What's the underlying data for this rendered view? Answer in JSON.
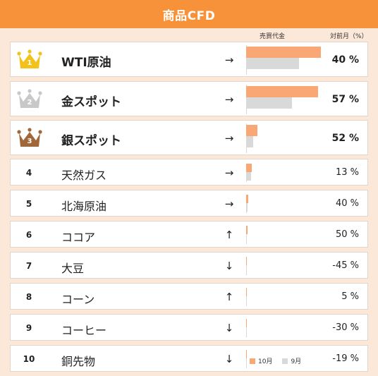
{
  "title": "商品CFD",
  "headers": {
    "volume": "売買代金",
    "change": "対前月（%）"
  },
  "legend": {
    "oct": "10月",
    "sep": "9月"
  },
  "colors": {
    "title_bg": "#f7923a",
    "oct": "#f9a774",
    "sep": "#d9d9d9",
    "gold": "#f2c21a",
    "silver": "#c8c8c8",
    "bronze": "#a0683a"
  },
  "chart_data": {
    "type": "bar",
    "orientation": "horizontal",
    "categories": [
      "WTI原油",
      "金スポット",
      "銀スポット",
      "天然ガス",
      "北海原油",
      "ココア",
      "大豆",
      "コーン",
      "コーヒー",
      "銅先物"
    ],
    "series": [
      {
        "name": "10月",
        "values": [
          100,
          96,
          15,
          8,
          3,
          1.5,
          1,
          0.5,
          0.3,
          0.2
        ]
      },
      {
        "name": "9月",
        "values": [
          71,
          61,
          9,
          7,
          2,
          1,
          1,
          0.5,
          0.3,
          0.2
        ]
      }
    ],
    "xlim": [
      0,
      100
    ]
  },
  "rows": [
    {
      "rank": "1",
      "name": "WTI原油",
      "arrow": "→",
      "change": "40 %"
    },
    {
      "rank": "2",
      "name": "金スポット",
      "arrow": "→",
      "change": "57 %"
    },
    {
      "rank": "3",
      "name": "銀スポット",
      "arrow": "→",
      "change": "52 %"
    },
    {
      "rank": "4",
      "name": "天然ガス",
      "arrow": "→",
      "change": "13 %"
    },
    {
      "rank": "5",
      "name": "北海原油",
      "arrow": "→",
      "change": "40 %"
    },
    {
      "rank": "6",
      "name": "ココア",
      "arrow": "↑",
      "change": "50 %"
    },
    {
      "rank": "7",
      "name": "大豆",
      "arrow": "↓",
      "change": "-45 %"
    },
    {
      "rank": "8",
      "name": "コーン",
      "arrow": "↑",
      "change": "5 %"
    },
    {
      "rank": "9",
      "name": "コーヒー",
      "arrow": "↓",
      "change": "-30 %"
    },
    {
      "rank": "10",
      "name": "銅先物",
      "arrow": "↓",
      "change": "-19 %"
    }
  ]
}
